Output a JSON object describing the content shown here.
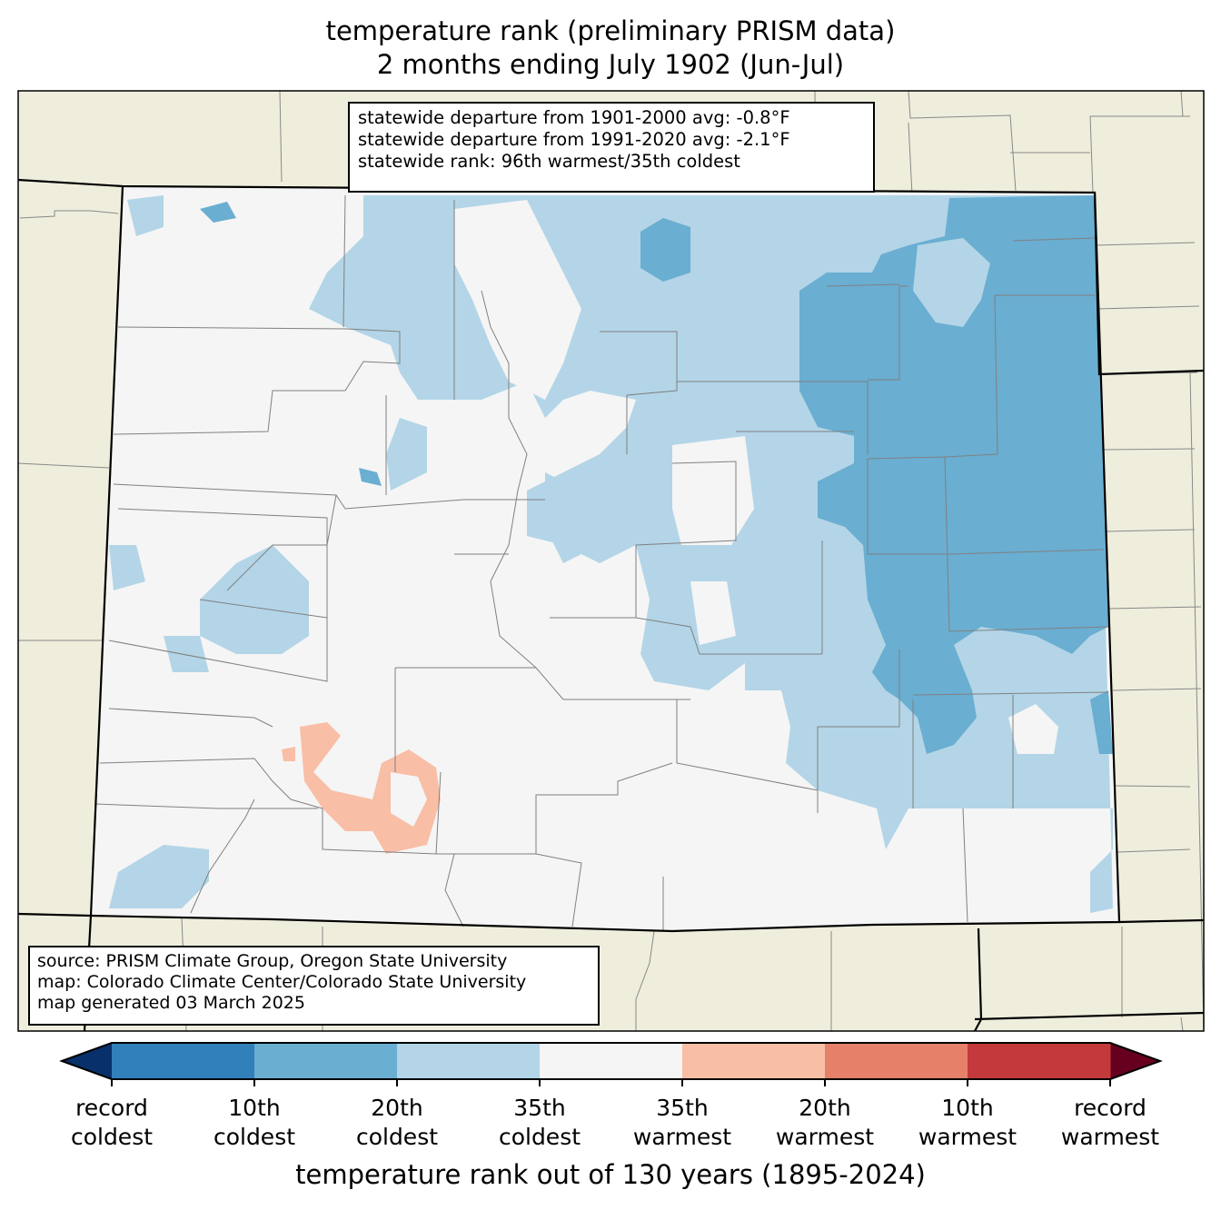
{
  "title": {
    "line1": "temperature rank (preliminary PRISM data)",
    "line2": "2 months ending July 1902 (Jun-Jul)"
  },
  "stats": {
    "line1": "statewide departure from 1901-2000 avg: -0.8°F",
    "line2": "statewide departure from 1991-2020 avg: -2.1°F",
    "line3": "statewide rank: 96th warmest/35th coldest"
  },
  "source": {
    "line1": "source: PRISM Climate Group, Oregon State University",
    "line2": "map: Colorado Climate Center/Colorado State University",
    "line3": "map generated 03 March 2025"
  },
  "colorbar": {
    "title": "temperature rank out of 130 years (1895-2024)",
    "under_color": "#08306b",
    "over_color": "#67001f",
    "colors": [
      "#3280b9",
      "#6aaed1",
      "#b3d5e7",
      "#f5f5f5",
      "#f9bea6",
      "#e48168",
      "#c4393b"
    ],
    "labels": [
      [
        "record",
        "coldest"
      ],
      [
        "10th",
        "coldest"
      ],
      [
        "20th",
        "coldest"
      ],
      [
        "35th",
        "coldest"
      ],
      [
        "35th",
        "warmest"
      ],
      [
        "20th",
        "warmest"
      ],
      [
        "10th",
        "warmest"
      ],
      [
        "record",
        "warmest"
      ]
    ]
  },
  "map_colors": {
    "land_outside": "#efeedd",
    "near_normal": "#f5f5f5",
    "below_35th": "#b3d5e7",
    "below_20th": "#6aaed1",
    "below_10th": "#3280b9",
    "above_35th": "#f9bea6"
  }
}
